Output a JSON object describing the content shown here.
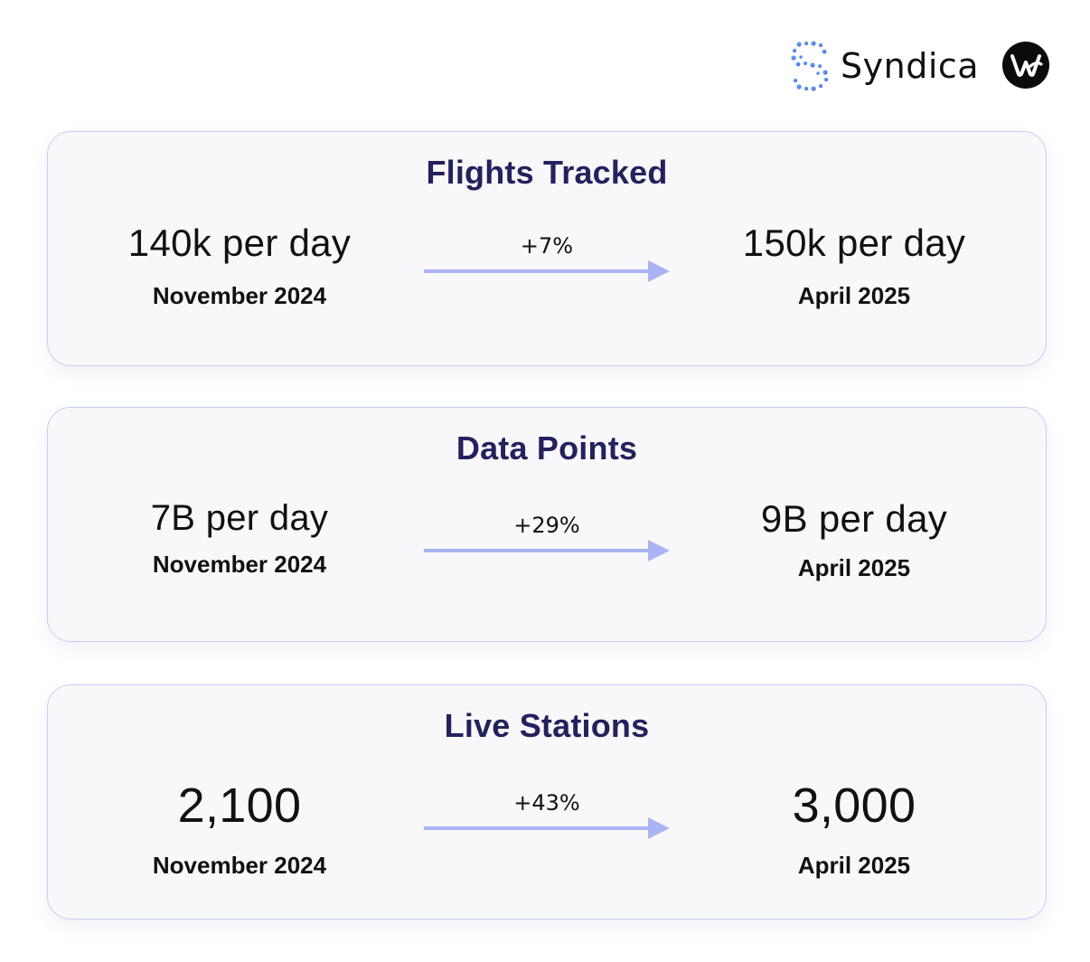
{
  "header": {
    "brand_name": "Syndica",
    "brand_mark_icon": "syndica-dotted-s-icon",
    "partner_logo_icon": "partner-w-circle-icon",
    "colors": {
      "mark_gradient_start": "#3ad6f2",
      "mark_gradient_end": "#7b3ff2",
      "partner_logo_bg": "#0b0b0b"
    }
  },
  "colors": {
    "card_background": "#f8f8fa",
    "card_border": "#c8cdf4",
    "title": "#23215e",
    "arrow": "#aab4f4",
    "text": "#111111"
  },
  "metrics": [
    {
      "title": "Flights Tracked",
      "from_value": "140k per day",
      "from_period": "November 2024",
      "change": "+7%",
      "to_value": "150k per day",
      "to_period": "April 2025"
    },
    {
      "title": "Data Points",
      "from_value": "7B per day",
      "from_period": "November 2024",
      "change": "+29%",
      "to_value": "9B per day",
      "to_period": "April 2025"
    },
    {
      "title": "Live Stations",
      "from_value": "2,100",
      "from_period": "November 2024",
      "change": "+43%",
      "to_value": "3,000",
      "to_period": "April 2025"
    }
  ]
}
